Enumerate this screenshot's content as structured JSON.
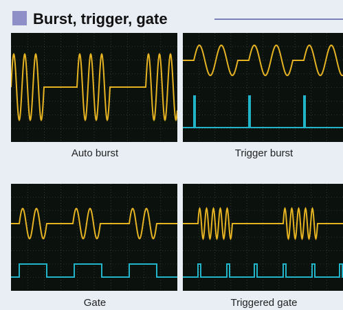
{
  "header": {
    "title": "Burst, trigger, gate"
  },
  "panels": [
    {
      "caption": "Auto burst"
    },
    {
      "caption": "Trigger burst"
    },
    {
      "caption": "Gate"
    },
    {
      "caption": "Triggered gate"
    }
  ]
}
